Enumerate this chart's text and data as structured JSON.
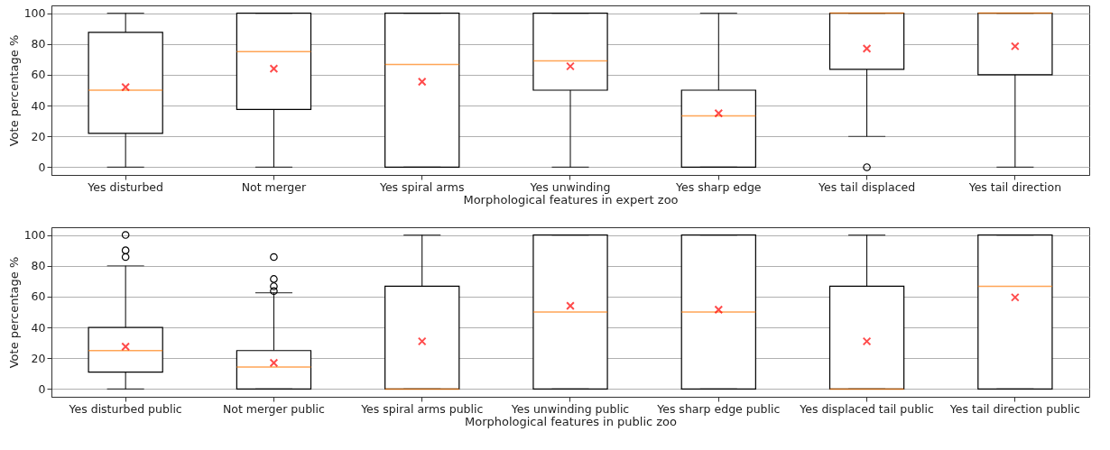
{
  "chart_data": [
    {
      "type": "box",
      "xlabel": "Morphological features in expert zoo",
      "ylabel": "Vote percentage %",
      "ylim": [
        -5,
        105
      ],
      "yticks": [
        0,
        20,
        40,
        60,
        80,
        100
      ],
      "grid": "y",
      "categories": [
        "Yes disturbed",
        "Not merger",
        "Yes spiral arms",
        "Yes unwinding",
        "Yes sharp edge",
        "Yes tail displaced",
        "Yes tail direction"
      ],
      "boxes": [
        {
          "low": 0,
          "q1": 22,
          "median": 50,
          "q3": 87.5,
          "high": 100,
          "mean": 52
        },
        {
          "low": 0,
          "q1": 37.5,
          "median": 75,
          "q3": 100,
          "high": 100,
          "mean": 64
        },
        {
          "low": 0,
          "q1": 0,
          "median": 66.7,
          "q3": 100,
          "high": 100,
          "mean": 55.5
        },
        {
          "low": 0,
          "q1": 50,
          "median": 69,
          "q3": 100,
          "high": 100,
          "mean": 65.5
        },
        {
          "low": 0,
          "q1": 0,
          "median": 33.3,
          "q3": 50,
          "high": 100,
          "mean": 35
        },
        {
          "low": 20,
          "q1": 63.5,
          "median": 100,
          "q3": 100,
          "high": 100,
          "mean": 77,
          "outliers": [
            0
          ]
        },
        {
          "low": 0,
          "q1": 60,
          "median": 100,
          "q3": 100,
          "high": 100,
          "mean": 78.5
        }
      ]
    },
    {
      "type": "box",
      "xlabel": "Morphological features in public zoo",
      "ylabel": "Vote percentage %",
      "ylim": [
        -5,
        105
      ],
      "yticks": [
        0,
        20,
        40,
        60,
        80,
        100
      ],
      "grid": "y",
      "categories": [
        "Yes disturbed public",
        "Not merger public",
        "Yes spiral arms public",
        "Yes unwinding public",
        "Yes sharp edge public",
        "Yes displaced tail public",
        "Yes tail direction public"
      ],
      "boxes": [
        {
          "low": 0,
          "q1": 11,
          "median": 25,
          "q3": 40,
          "high": 80,
          "mean": 27.5,
          "outliers": [
            85.7,
            90,
            100
          ]
        },
        {
          "low": 0,
          "q1": 0,
          "median": 14.3,
          "q3": 25,
          "high": 62.5,
          "mean": 17,
          "outliers": [
            63.6,
            66.7,
            71.4,
            85.7
          ]
        },
        {
          "low": 0,
          "q1": 0,
          "median": 0,
          "q3": 66.7,
          "high": 100,
          "mean": 31
        },
        {
          "low": 0,
          "q1": 0,
          "median": 50,
          "q3": 100,
          "high": 100,
          "mean": 54
        },
        {
          "low": 0,
          "q1": 0,
          "median": 50,
          "q3": 100,
          "high": 100,
          "mean": 51.5
        },
        {
          "low": 0,
          "q1": 0,
          "median": 0,
          "q3": 66.7,
          "high": 100,
          "mean": 31
        },
        {
          "low": 0,
          "q1": 0,
          "median": 66.7,
          "q3": 100,
          "high": 100,
          "mean": 59.5
        }
      ]
    }
  ]
}
